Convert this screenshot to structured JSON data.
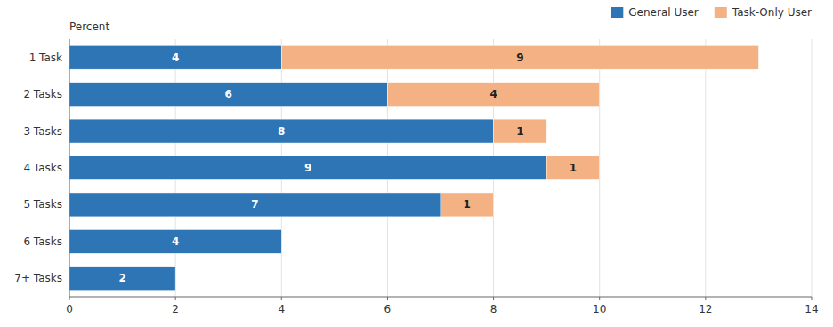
{
  "chart_data": {
    "type": "bar",
    "orientation": "horizontal",
    "stacked": true,
    "ylabel": "Percent",
    "categories": [
      "1 Task",
      "2 Tasks",
      "3 Tasks",
      "4 Tasks",
      "5 Tasks",
      "6 Tasks",
      "7+ Tasks"
    ],
    "series": [
      {
        "name": "General User",
        "color": "#2E75B6",
        "values": [
          4,
          6,
          8,
          9,
          7,
          4,
          2
        ]
      },
      {
        "name": "Task-Only User",
        "color": "#F4B183",
        "values": [
          9,
          4,
          1,
          1,
          1,
          0,
          0
        ]
      }
    ],
    "xlim": [
      0,
      14
    ],
    "xticks": [
      0,
      2,
      4,
      6,
      8,
      10,
      12,
      14
    ],
    "grid": true,
    "legend": "upper right",
    "data_labels": true
  }
}
